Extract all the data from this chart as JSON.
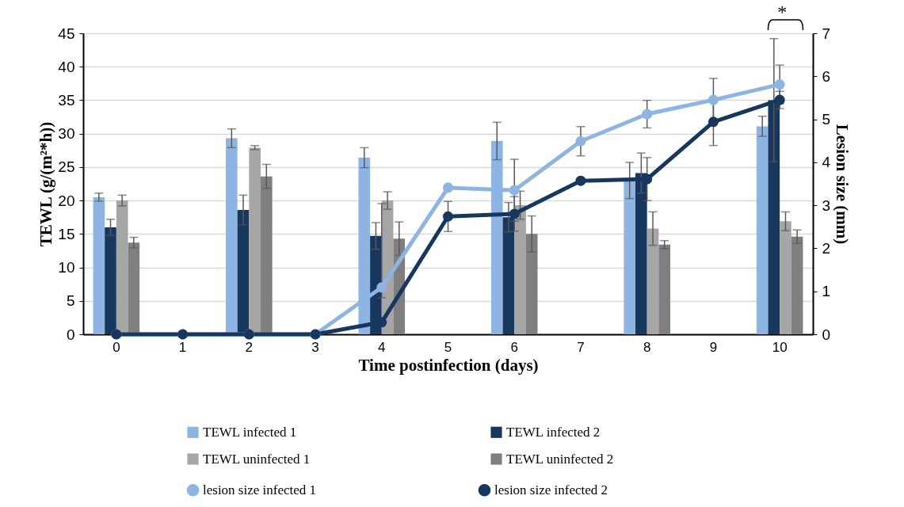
{
  "chart_data": {
    "type": "bar",
    "xlabel": "Time postinfection (days)",
    "ylabel": "TEWL (g/(m²*h))",
    "y2label": "Lesion size (mm)",
    "categories": [
      "0",
      "1",
      "2",
      "3",
      "4",
      "5",
      "6",
      "7",
      "8",
      "9",
      "10"
    ],
    "series": [
      {
        "name": "TEWL infected 1",
        "color": "#8eb4e3",
        "values": [
          20.5,
          null,
          29.3,
          null,
          26.4,
          null,
          28.9,
          null,
          23.0,
          null,
          31.1
        ],
        "errors": [
          0.6,
          null,
          1.4,
          null,
          1.5,
          null,
          2.8,
          null,
          2.7,
          null,
          1.5
        ]
      },
      {
        "name": "TEWL infected 2",
        "color": "#17375e",
        "values": [
          16.0,
          null,
          18.6,
          null,
          14.7,
          null,
          17.5,
          null,
          24.1,
          null,
          35.0
        ],
        "errors": [
          1.2,
          null,
          2.2,
          null,
          2.0,
          null,
          2.2,
          null,
          3.0,
          null,
          9.2
        ]
      },
      {
        "name": "TEWL uninfected 1",
        "color": "#a6a6a6",
        "values": [
          20.0,
          null,
          27.9,
          null,
          20.0,
          null,
          19.3,
          null,
          15.8,
          null,
          16.9
        ],
        "errors": [
          0.8,
          null,
          0.3,
          null,
          1.3,
          null,
          2.1,
          null,
          2.5,
          null,
          1.4
        ]
      },
      {
        "name": "TEWL uninfected 2",
        "color": "#7f7f7f",
        "values": [
          13.7,
          null,
          23.6,
          null,
          14.3,
          null,
          15.0,
          null,
          13.4,
          null,
          14.6
        ],
        "errors": [
          0.8,
          null,
          1.8,
          null,
          2.5,
          null,
          2.7,
          null,
          0.6,
          null,
          1.0
        ]
      },
      {
        "name": "lesion size infected 1",
        "type": "line",
        "axis": "y2",
        "color": "#8eb4e3",
        "values": [
          0,
          0,
          0,
          0,
          1.09,
          3.41,
          3.35,
          4.49,
          5.12,
          5.45,
          5.81
        ],
        "errors": [
          null,
          null,
          null,
          null,
          [
            0.85,
            3.04
          ],
          null,
          0.72,
          0.34,
          0.32,
          0.5,
          0.45
        ]
      },
      {
        "name": "lesion size infected 2",
        "type": "line",
        "axis": "y2",
        "color": "#17375e",
        "values": [
          0,
          0,
          0,
          0,
          0.28,
          2.74,
          2.8,
          3.57,
          3.61,
          4.94,
          5.45
        ],
        "errors": [
          null,
          null,
          null,
          null,
          null,
          0.35,
          0.4,
          null,
          0.5,
          0.55,
          0.2
        ]
      }
    ],
    "ylim": [
      0,
      45
    ],
    "yticks": [
      0,
      5,
      10,
      15,
      20,
      25,
      30,
      35,
      40,
      45
    ],
    "y2lim": [
      0,
      7
    ],
    "y2ticks": [
      0,
      1,
      2,
      3,
      4,
      5,
      6,
      7
    ],
    "annotations": [
      "*"
    ],
    "grid": "y",
    "legend": "bottom",
    "marker": "circle",
    "line_style": "solid"
  }
}
